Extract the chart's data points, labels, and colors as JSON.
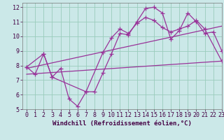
{
  "background_color": "#cbe8e8",
  "grid_color": "#99ccbb",
  "line_color": "#993399",
  "xlim": [
    -0.5,
    23
  ],
  "ylim": [
    5,
    12.3
  ],
  "xticks": [
    0,
    1,
    2,
    3,
    4,
    5,
    6,
    7,
    8,
    9,
    10,
    11,
    12,
    13,
    14,
    15,
    16,
    17,
    18,
    19,
    20,
    21,
    22,
    23
  ],
  "yticks": [
    5,
    6,
    7,
    8,
    9,
    10,
    11,
    12
  ],
  "xlabel": "Windchill (Refroidissement éolien,°C)",
  "series1_x": [
    0,
    1,
    2,
    3,
    4,
    5,
    6,
    7,
    8,
    9,
    10,
    11,
    12,
    13,
    14,
    15,
    16,
    17,
    18,
    19,
    20,
    21,
    22,
    23
  ],
  "series1_y": [
    7.9,
    7.4,
    8.8,
    7.2,
    7.8,
    5.7,
    5.2,
    6.2,
    6.2,
    7.5,
    8.8,
    10.2,
    10.1,
    11.0,
    11.9,
    12.0,
    11.6,
    9.8,
    10.4,
    11.6,
    11.0,
    10.2,
    10.3,
    9.0
  ],
  "series2_x": [
    0,
    2,
    3,
    7,
    9,
    10,
    11,
    12,
    13,
    14,
    15,
    16,
    17,
    18,
    19,
    20,
    21,
    23
  ],
  "series2_y": [
    7.9,
    8.8,
    7.2,
    6.2,
    8.9,
    9.9,
    10.5,
    10.2,
    10.9,
    11.3,
    11.1,
    10.6,
    10.3,
    10.5,
    10.7,
    11.1,
    10.5,
    8.3
  ],
  "trend1_x": [
    0,
    23
  ],
  "trend1_y": [
    7.8,
    10.7
  ],
  "trend2_x": [
    0,
    23
  ],
  "trend2_y": [
    7.4,
    8.3
  ],
  "marker": "+",
  "marker_size": 4,
  "line_width": 0.9,
  "font_size": 6.5
}
